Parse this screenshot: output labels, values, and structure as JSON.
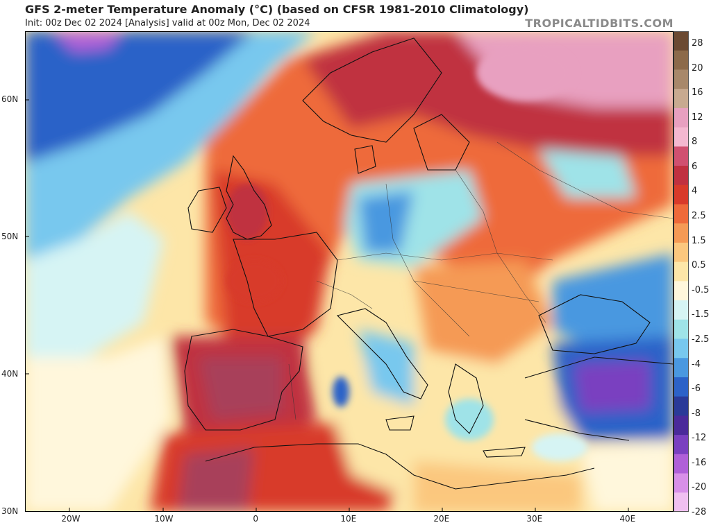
{
  "title": "GFS 2-meter Temperature Anomaly (°C) (based on CFSR 1981-2010 Climatology)",
  "subtitle": "Init: 00z Dec 02 2024   [Analysis]   valid at 00z Mon, Dec 02 2024",
  "brand": "TROPICALTIDBITS.COM",
  "lat_labels": [
    {
      "text": "60N",
      "lat": 60
    },
    {
      "text": "50N",
      "lat": 50
    },
    {
      "text": "40N",
      "lat": 40
    },
    {
      "text": "30N",
      "lat": 30
    }
  ],
  "lon_labels": [
    {
      "text": "20W",
      "lon": -20
    },
    {
      "text": "10W",
      "lon": -10
    },
    {
      "text": "0",
      "lon": 0
    },
    {
      "text": "10E",
      "lon": 10
    },
    {
      "text": "20E",
      "lon": 20
    },
    {
      "text": "30E",
      "lon": 30
    },
    {
      "text": "40E",
      "lon": 40
    }
  ],
  "colorbar": {
    "labels": [
      "28",
      "20",
      "16",
      "12",
      "8",
      "6",
      "4",
      "2.5",
      "1.5",
      "0.5",
      "-0.5",
      "-1.5",
      "-2.5",
      "-4",
      "-6",
      "-8",
      "-12",
      "-16",
      "-20",
      "-28"
    ],
    "colors": [
      "#6b4a32",
      "#8c6a4a",
      "#a8886a",
      "#c8aa90",
      "#e8a0c0",
      "#f4b8d0",
      "#d05070",
      "#c03040",
      "#d83a2a",
      "#ee6a3a",
      "#f59a55",
      "#fbc77e",
      "#fde6a8",
      "#fff7dc",
      "#d6f4f4",
      "#9fe3e8",
      "#78c8ee",
      "#4a98e0",
      "#2c62c8",
      "#2a3a98",
      "#4a2a9a",
      "#7a40c0",
      "#b060d8",
      "#d890e8",
      "#f0c0f0"
    ]
  }
}
